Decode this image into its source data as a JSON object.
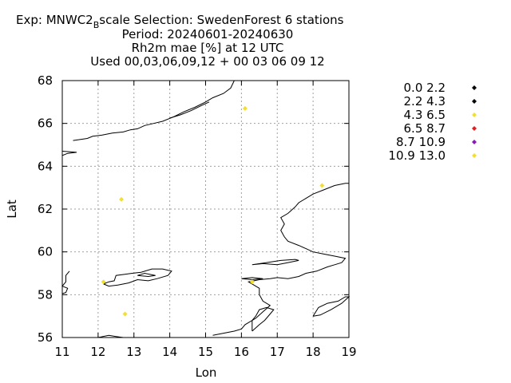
{
  "header": {
    "line1_exp": "Exp: MNWC2",
    "line1_sub": "B",
    "line1_rest": "scale   Selection: SwedenForest       6 stations",
    "line2": "Period: 20240601-20240630",
    "line3": "Rh2m mae [%] at  12 UTC",
    "line4": "Used 00,03,06,09,12 + 00 03 06 09 12"
  },
  "chart_data": {
    "type": "scatter",
    "xlabel": "Lon",
    "ylabel": "Lat",
    "xlim": [
      11,
      19
    ],
    "ylim": [
      56,
      68
    ],
    "xticks": [
      "11",
      "12",
      "13",
      "14",
      "15",
      "16",
      "17",
      "18",
      "19"
    ],
    "yticks": [
      "56",
      "58",
      "60",
      "62",
      "64",
      "66",
      "68"
    ],
    "grid": true,
    "legend_position": "right",
    "legend": [
      {
        "label": "0.0 2.2",
        "color": "#000000"
      },
      {
        "label": "2.2 4.3",
        "color": "#000000"
      },
      {
        "label": "4.3 6.5",
        "color": "#f2e030"
      },
      {
        "label": "6.5 8.7",
        "color": "#e02020"
      },
      {
        "label": "8.7 10.9",
        "color": "#8a1ab8"
      },
      {
        "label": "10.9 13.0",
        "color": "#f2e030"
      }
    ],
    "points": [
      {
        "lon": 16.1,
        "lat": 66.7,
        "color": "#f2e030"
      },
      {
        "lon": 18.25,
        "lat": 63.1,
        "color": "#f2e030"
      },
      {
        "lon": 12.65,
        "lat": 62.45,
        "color": "#f2e030"
      },
      {
        "lon": 12.15,
        "lat": 58.6,
        "color": "#f2e030"
      },
      {
        "lon": 16.3,
        "lat": 58.6,
        "color": "#f2e030"
      },
      {
        "lon": 12.75,
        "lat": 57.1,
        "color": "#f2e030"
      }
    ],
    "coastline": [
      [
        [
          11.0,
          58.05
        ],
        [
          11.1,
          58.1
        ],
        [
          11.15,
          58.3
        ],
        [
          11.0,
          58.4
        ],
        [
          11.1,
          58.6
        ],
        [
          11.1,
          58.9
        ],
        [
          11.2,
          59.1
        ]
      ],
      [
        [
          12.15,
          58.5
        ],
        [
          12.3,
          58.6
        ],
        [
          12.45,
          58.65
        ],
        [
          12.5,
          58.9
        ],
        [
          12.75,
          58.95
        ],
        [
          12.95,
          59.0
        ],
        [
          13.2,
          59.05
        ],
        [
          13.5,
          59.2
        ],
        [
          13.8,
          59.2
        ],
        [
          14.05,
          59.1
        ],
        [
          13.95,
          58.9
        ],
        [
          13.65,
          58.75
        ],
        [
          13.4,
          58.65
        ],
        [
          13.1,
          58.7
        ],
        [
          12.85,
          58.55
        ],
        [
          12.55,
          58.45
        ],
        [
          12.3,
          58.4
        ],
        [
          12.15,
          58.5
        ]
      ],
      [
        [
          13.1,
          58.9
        ],
        [
          13.4,
          58.85
        ],
        [
          13.6,
          58.9
        ],
        [
          13.3,
          59.0
        ],
        [
          13.1,
          58.9
        ]
      ],
      [
        [
          11.0,
          64.5
        ],
        [
          11.15,
          64.6
        ],
        [
          11.4,
          64.65
        ],
        [
          11.0,
          64.7
        ]
      ],
      [
        [
          11.3,
          65.2
        ],
        [
          11.7,
          65.3
        ],
        [
          11.85,
          65.4
        ],
        [
          12.1,
          65.45
        ],
        [
          12.4,
          65.55
        ],
        [
          12.7,
          65.6
        ],
        [
          12.9,
          65.7
        ],
        [
          13.1,
          65.75
        ],
        [
          13.3,
          65.9
        ],
        [
          13.55,
          66.0
        ],
        [
          13.8,
          66.1
        ],
        [
          14.1,
          66.3
        ],
        [
          14.4,
          66.55
        ],
        [
          14.7,
          66.75
        ],
        [
          15.0,
          67.0
        ],
        [
          15.2,
          67.2
        ],
        [
          15.5,
          67.4
        ],
        [
          15.7,
          67.65
        ],
        [
          15.8,
          68.0
        ]
      ],
      [
        [
          14.0,
          66.25
        ],
        [
          14.3,
          66.4
        ],
        [
          14.6,
          66.6
        ],
        [
          14.9,
          66.85
        ],
        [
          15.1,
          67.0
        ]
      ],
      [
        [
          16.3,
          56.3
        ],
        [
          16.5,
          56.6
        ],
        [
          16.65,
          56.8
        ],
        [
          16.8,
          57.1
        ],
        [
          16.9,
          57.3
        ],
        [
          16.7,
          57.4
        ],
        [
          16.5,
          57.3
        ],
        [
          16.4,
          57.0
        ],
        [
          16.3,
          56.8
        ],
        [
          16.3,
          56.3
        ]
      ],
      [
        [
          15.2,
          56.1
        ],
        [
          15.5,
          56.2
        ],
        [
          15.8,
          56.3
        ],
        [
          16.0,
          56.4
        ],
        [
          16.1,
          56.6
        ],
        [
          16.4,
          56.9
        ],
        [
          16.6,
          57.2
        ],
        [
          16.8,
          57.5
        ],
        [
          16.6,
          57.7
        ],
        [
          16.5,
          58.0
        ],
        [
          16.5,
          58.3
        ],
        [
          16.3,
          58.5
        ],
        [
          16.2,
          58.6
        ],
        [
          16.5,
          58.7
        ],
        [
          16.8,
          58.75
        ],
        [
          17.0,
          58.8
        ],
        [
          17.3,
          58.75
        ],
        [
          17.6,
          58.85
        ],
        [
          17.8,
          59.0
        ],
        [
          18.1,
          59.1
        ],
        [
          18.4,
          59.3
        ],
        [
          18.6,
          59.4
        ],
        [
          18.8,
          59.5
        ],
        [
          18.9,
          59.7
        ],
        [
          18.6,
          59.8
        ],
        [
          18.3,
          59.9
        ],
        [
          18.0,
          60.0
        ],
        [
          17.8,
          60.15
        ],
        [
          17.6,
          60.3
        ],
        [
          17.3,
          60.5
        ],
        [
          17.2,
          60.7
        ],
        [
          17.1,
          61.0
        ],
        [
          17.2,
          61.3
        ],
        [
          17.1,
          61.6
        ],
        [
          17.3,
          61.8
        ],
        [
          17.5,
          62.1
        ],
        [
          17.6,
          62.3
        ],
        [
          17.8,
          62.5
        ],
        [
          18.0,
          62.7
        ],
        [
          18.3,
          62.9
        ],
        [
          18.6,
          63.1
        ],
        [
          18.9,
          63.2
        ],
        [
          19.0,
          63.2
        ]
      ],
      [
        [
          16.3,
          59.4
        ],
        [
          16.6,
          59.45
        ],
        [
          17.0,
          59.4
        ],
        [
          17.3,
          59.5
        ],
        [
          17.6,
          59.6
        ],
        [
          17.5,
          59.65
        ],
        [
          17.1,
          59.6
        ],
        [
          16.7,
          59.5
        ],
        [
          16.3,
          59.4
        ]
      ],
      [
        [
          16.0,
          58.75
        ],
        [
          16.3,
          58.8
        ],
        [
          16.6,
          58.75
        ],
        [
          16.3,
          58.7
        ],
        [
          16.0,
          58.75
        ]
      ],
      [
        [
          18.0,
          57.0
        ],
        [
          18.15,
          57.4
        ],
        [
          18.4,
          57.6
        ],
        [
          18.7,
          57.7
        ],
        [
          18.9,
          57.9
        ],
        [
          19.0,
          57.9
        ],
        [
          18.8,
          57.6
        ],
        [
          18.5,
          57.3
        ],
        [
          18.2,
          57.05
        ],
        [
          18.0,
          57.0
        ]
      ],
      [
        [
          12.0,
          56.0
        ],
        [
          12.3,
          56.1
        ],
        [
          12.5,
          56.05
        ],
        [
          12.7,
          56.0
        ]
      ]
    ]
  }
}
